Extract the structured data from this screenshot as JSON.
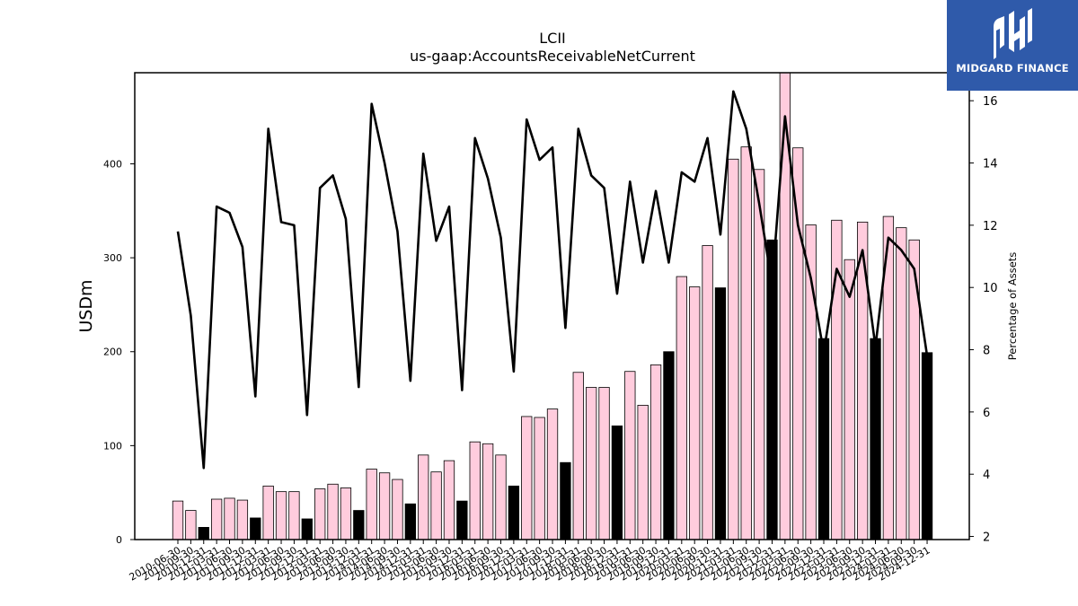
{
  "chart_data": {
    "type": "bar+line",
    "title": "LCII",
    "subtitle": "us-gaap:AccountsReceivableNetCurrent",
    "ylabel": "USDm",
    "y2label": "Percentage of Assets",
    "ylim": [
      0,
      497
    ],
    "y2lim": [
      1.9,
      16.9
    ],
    "yticks": [
      0,
      100,
      200,
      300,
      400
    ],
    "y2ticks": [
      2,
      4,
      6,
      8,
      10,
      12,
      14,
      16
    ],
    "categories": [
      "2010-06-30",
      "2010-09-30",
      "2010-12-31",
      "2011-03-31",
      "2011-06-30",
      "2011-09-30",
      "2011-12-31",
      "2012-03-31",
      "2012-06-30",
      "2012-09-30",
      "2012-12-31",
      "2013-03-31",
      "2013-06-30",
      "2013-09-30",
      "2013-12-31",
      "2014-03-31",
      "2014-06-30",
      "2014-09-30",
      "2014-12-31",
      "2015-03-31",
      "2015-06-30",
      "2015-09-30",
      "2015-12-31",
      "2016-03-31",
      "2016-06-30",
      "2016-09-30",
      "2016-12-31",
      "2017-03-31",
      "2017-06-30",
      "2017-09-30",
      "2017-12-31",
      "2018-03-31",
      "2018-06-30",
      "2018-09-30",
      "2018-12-31",
      "2019-03-31",
      "2019-06-30",
      "2019-09-30",
      "2019-12-31",
      "2020-03-31",
      "2020-06-30",
      "2020-09-30",
      "2020-12-31",
      "2021-03-31",
      "2021-06-30",
      "2021-09-30",
      "2021-12-31",
      "2022-03-31",
      "2022-06-30",
      "2022-09-30",
      "2022-12-31",
      "2023-03-31",
      "2023-06-30",
      "2023-09-30",
      "2023-12-31",
      "2024-03-31",
      "2024-06-30",
      "2024-09-30",
      "2024-12-31"
    ],
    "series": [
      {
        "kind": "bar",
        "values": [
          41,
          31,
          13,
          43,
          44,
          42,
          23,
          57,
          51,
          51,
          22,
          54,
          59,
          55,
          31,
          75,
          71,
          64,
          38,
          90,
          72,
          84,
          41,
          104,
          102,
          90,
          57,
          131,
          130,
          139,
          82,
          178,
          162,
          162,
          121,
          179,
          143,
          186,
          200,
          280,
          269,
          313,
          268,
          405,
          418,
          394,
          319,
          497,
          417,
          335,
          214,
          340,
          298,
          338,
          214,
          344,
          332,
          319,
          199
        ],
        "highlight_every": 4,
        "highlight_offset": 2,
        "colors": {
          "default": "#ffccdd",
          "highlight": "#000000",
          "edge": "#000000"
        }
      },
      {
        "kind": "line",
        "axis": "y2",
        "color": "#000000",
        "values": [
          11.8,
          9.1,
          4.2,
          12.6,
          12.4,
          11.3,
          6.5,
          15.1,
          12.1,
          12.0,
          5.9,
          13.2,
          13.6,
          12.2,
          6.8,
          15.9,
          14.0,
          11.8,
          7.0,
          14.3,
          11.5,
          12.6,
          6.7,
          14.8,
          13.5,
          11.6,
          7.3,
          15.4,
          14.1,
          14.5,
          8.7,
          15.1,
          13.6,
          13.2,
          9.8,
          13.4,
          10.8,
          13.1,
          10.8,
          13.7,
          13.4,
          14.8,
          11.7,
          16.3,
          15.1,
          12.7,
          10.1,
          15.5,
          12.0,
          10.3,
          7.9,
          10.6,
          9.7,
          11.2,
          8.1,
          11.6,
          11.2,
          10.6,
          7.8
        ]
      }
    ]
  },
  "logo": {
    "text": "MIDGARD FINANCE",
    "bg_color": "#2f5aaa"
  }
}
